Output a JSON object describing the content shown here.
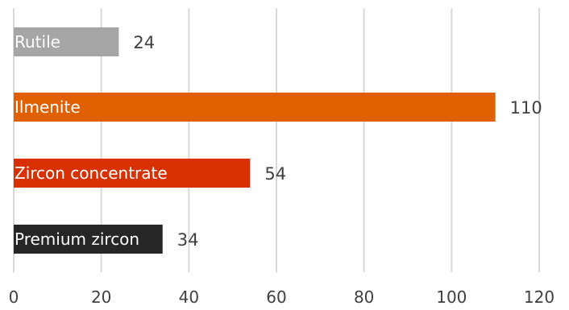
{
  "chart_data": {
    "type": "bar",
    "orientation": "horizontal",
    "categories": [
      "Rutile",
      "Ilmenite",
      "Zircon concentrate",
      "Premium zircon"
    ],
    "values": [
      24,
      110,
      54,
      34
    ],
    "colors": [
      "#a6a6a6",
      "#e06000",
      "#d83000",
      "#262626"
    ],
    "xlim": [
      0,
      120
    ],
    "xticks": [
      0,
      20,
      40,
      60,
      80,
      100,
      120
    ],
    "grid": true,
    "title": "",
    "xlabel": "",
    "ylabel": ""
  }
}
